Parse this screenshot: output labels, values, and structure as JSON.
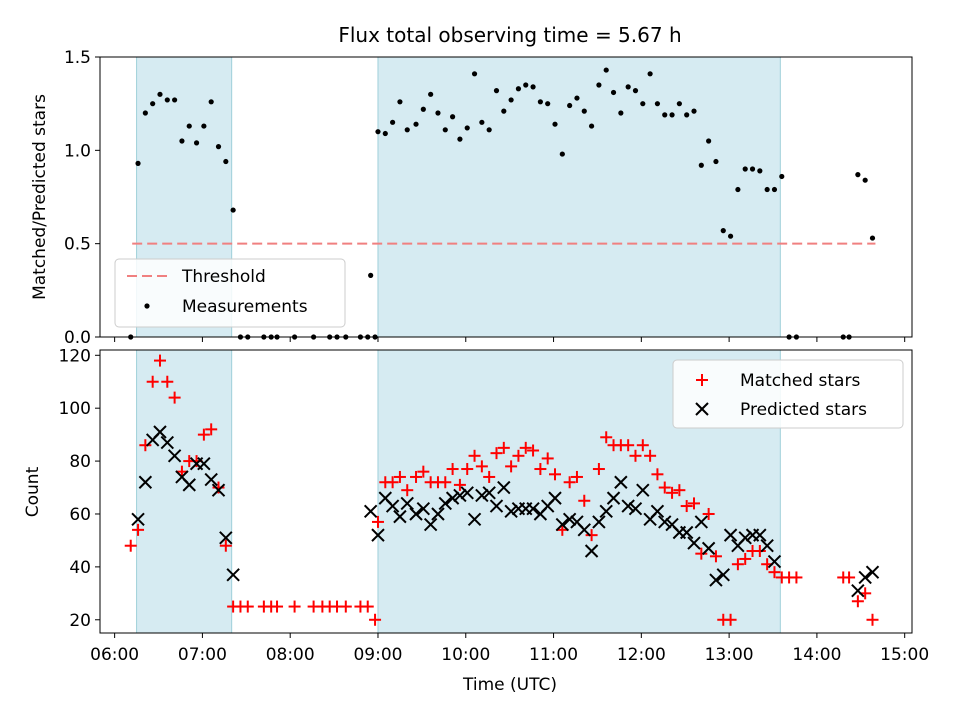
{
  "chart_data": [
    {
      "type": "scatter",
      "title": "Flux total observing time = 5.67 h",
      "ylabel": "Matched/Predicted stars",
      "xlabel": "",
      "xlim": [
        "05:50",
        "15:05"
      ],
      "ylim": [
        0,
        1.5
      ],
      "y_ticks": [
        "0.0",
        "0.5",
        "1.0",
        "1.5"
      ],
      "grid": false,
      "legend_position": "lower-left",
      "observing_intervals": [
        [
          "06:15",
          "07:20"
        ],
        [
          "09:00",
          "13:35"
        ]
      ],
      "threshold": {
        "name": "Threshold",
        "value": 0.5,
        "x_range": [
          "06:12",
          "14:40"
        ],
        "color": "#f08080",
        "style": "dashed"
      },
      "series": [
        {
          "name": "Measurements",
          "marker": "dot",
          "color": "#000000",
          "points": [
            [
              "06:11",
              0.0
            ],
            [
              "06:16",
              0.93
            ],
            [
              "06:21",
              1.2
            ],
            [
              "06:26",
              1.25
            ],
            [
              "06:31",
              1.3
            ],
            [
              "06:36",
              1.27
            ],
            [
              "06:41",
              1.27
            ],
            [
              "06:46",
              1.05
            ],
            [
              "06:51",
              1.13
            ],
            [
              "06:56",
              1.04
            ],
            [
              "07:01",
              1.13
            ],
            [
              "07:06",
              1.26
            ],
            [
              "07:11",
              1.02
            ],
            [
              "07:16",
              0.94
            ],
            [
              "07:21",
              0.68
            ],
            [
              "07:26",
              0.0
            ],
            [
              "07:31",
              0.0
            ],
            [
              "07:42",
              0.0
            ],
            [
              "07:47",
              0.0
            ],
            [
              "07:51",
              0.0
            ],
            [
              "08:03",
              0.0
            ],
            [
              "08:16",
              0.0
            ],
            [
              "08:27",
              0.0
            ],
            [
              "08:32",
              0.0
            ],
            [
              "08:38",
              0.0
            ],
            [
              "08:48",
              0.0
            ],
            [
              "08:53",
              0.0
            ],
            [
              "08:58",
              0.0
            ],
            [
              "08:55",
              0.33
            ],
            [
              "09:00",
              1.1
            ],
            [
              "09:05",
              1.09
            ],
            [
              "09:10",
              1.15
            ],
            [
              "09:15",
              1.26
            ],
            [
              "09:20",
              1.11
            ],
            [
              "09:26",
              1.14
            ],
            [
              "09:31",
              1.22
            ],
            [
              "09:36",
              1.3
            ],
            [
              "09:41",
              1.2
            ],
            [
              "09:46",
              1.11
            ],
            [
              "09:51",
              1.18
            ],
            [
              "09:56",
              1.06
            ],
            [
              "10:01",
              1.12
            ],
            [
              "10:06",
              1.41
            ],
            [
              "10:11",
              1.15
            ],
            [
              "10:16",
              1.11
            ],
            [
              "10:21",
              1.32
            ],
            [
              "10:26",
              1.21
            ],
            [
              "10:31",
              1.27
            ],
            [
              "10:36",
              1.33
            ],
            [
              "10:41",
              1.35
            ],
            [
              "10:46",
              1.34
            ],
            [
              "10:51",
              1.26
            ],
            [
              "10:56",
              1.25
            ],
            [
              "11:01",
              1.14
            ],
            [
              "11:06",
              0.98
            ],
            [
              "11:11",
              1.24
            ],
            [
              "11:16",
              1.28
            ],
            [
              "11:21",
              1.21
            ],
            [
              "11:26",
              1.13
            ],
            [
              "11:31",
              1.35
            ],
            [
              "11:36",
              1.43
            ],
            [
              "11:41",
              1.31
            ],
            [
              "11:46",
              1.2
            ],
            [
              "11:51",
              1.34
            ],
            [
              "11:56",
              1.32
            ],
            [
              "12:01",
              1.25
            ],
            [
              "12:06",
              1.41
            ],
            [
              "12:11",
              1.25
            ],
            [
              "12:16",
              1.19
            ],
            [
              "12:21",
              1.19
            ],
            [
              "12:26",
              1.25
            ],
            [
              "12:31",
              1.19
            ],
            [
              "12:36",
              1.21
            ],
            [
              "12:41",
              0.92
            ],
            [
              "12:46",
              1.05
            ],
            [
              "12:51",
              0.94
            ],
            [
              "12:56",
              0.57
            ],
            [
              "13:01",
              0.54
            ],
            [
              "13:06",
              0.79
            ],
            [
              "13:11",
              0.9
            ],
            [
              "13:16",
              0.9
            ],
            [
              "13:21",
              0.89
            ],
            [
              "13:26",
              0.79
            ],
            [
              "13:31",
              0.79
            ],
            [
              "13:36",
              0.86
            ],
            [
              "13:41",
              0.0
            ],
            [
              "13:46",
              0.0
            ],
            [
              "14:18",
              0.0
            ],
            [
              "14:22",
              0.0
            ],
            [
              "14:28",
              0.87
            ],
            [
              "14:33",
              0.84
            ],
            [
              "14:38",
              0.53
            ]
          ]
        }
      ]
    },
    {
      "type": "scatter",
      "title": "",
      "xlabel": "Time (UTC)",
      "ylabel": "Count",
      "xlim": [
        "05:50",
        "15:05"
      ],
      "ylim": [
        15,
        122
      ],
      "x_ticks": [
        "06:00",
        "07:00",
        "08:00",
        "09:00",
        "10:00",
        "11:00",
        "12:00",
        "13:00",
        "14:00",
        "15:00"
      ],
      "y_ticks": [
        "20",
        "40",
        "60",
        "80",
        "100",
        "120"
      ],
      "grid": false,
      "legend_position": "upper-right",
      "observing_intervals": [
        [
          "06:15",
          "07:20"
        ],
        [
          "09:00",
          "13:35"
        ]
      ],
      "series": [
        {
          "name": "Matched stars",
          "marker": "plus",
          "color": "#ff0000",
          "points": [
            [
              "06:11",
              48
            ],
            [
              "06:16",
              54
            ],
            [
              "06:21",
              86
            ],
            [
              "06:26",
              110
            ],
            [
              "06:31",
              118
            ],
            [
              "06:36",
              110
            ],
            [
              "06:41",
              104
            ],
            [
              "06:46",
              76
            ],
            [
              "06:51",
              80
            ],
            [
              "06:56",
              80
            ],
            [
              "07:01",
              90
            ],
            [
              "07:06",
              92
            ],
            [
              "07:11",
              70
            ],
            [
              "07:16",
              48
            ],
            [
              "07:21",
              25
            ],
            [
              "07:26",
              25
            ],
            [
              "07:31",
              25
            ],
            [
              "07:42",
              25
            ],
            [
              "07:47",
              25
            ],
            [
              "07:51",
              25
            ],
            [
              "08:03",
              25
            ],
            [
              "08:16",
              25
            ],
            [
              "08:22",
              25
            ],
            [
              "08:27",
              25
            ],
            [
              "08:32",
              25
            ],
            [
              "08:38",
              25
            ],
            [
              "08:48",
              25
            ],
            [
              "08:53",
              25
            ],
            [
              "08:58",
              20
            ],
            [
              "09:00",
              57
            ],
            [
              "09:05",
              72
            ],
            [
              "09:10",
              72
            ],
            [
              "09:15",
              74
            ],
            [
              "09:20",
              69
            ],
            [
              "09:26",
              74
            ],
            [
              "09:31",
              76
            ],
            [
              "09:36",
              72
            ],
            [
              "09:41",
              72
            ],
            [
              "09:46",
              72
            ],
            [
              "09:51",
              77
            ],
            [
              "09:56",
              71
            ],
            [
              "10:01",
              77
            ],
            [
              "10:06",
              82
            ],
            [
              "10:11",
              78
            ],
            [
              "10:16",
              74
            ],
            [
              "10:21",
              83
            ],
            [
              "10:26",
              85
            ],
            [
              "10:31",
              78
            ],
            [
              "10:36",
              82
            ],
            [
              "10:41",
              85
            ],
            [
              "10:46",
              84
            ],
            [
              "10:51",
              77
            ],
            [
              "10:56",
              81
            ],
            [
              "11:01",
              75
            ],
            [
              "11:06",
              54
            ],
            [
              "11:11",
              72
            ],
            [
              "11:16",
              74
            ],
            [
              "11:21",
              65
            ],
            [
              "11:26",
              52
            ],
            [
              "11:31",
              77
            ],
            [
              "11:36",
              89
            ],
            [
              "11:41",
              86
            ],
            [
              "11:46",
              86
            ],
            [
              "11:51",
              86
            ],
            [
              "11:56",
              82
            ],
            [
              "12:01",
              86
            ],
            [
              "12:06",
              82
            ],
            [
              "12:11",
              75
            ],
            [
              "12:16",
              70
            ],
            [
              "12:21",
              68
            ],
            [
              "12:26",
              69
            ],
            [
              "12:31",
              63
            ],
            [
              "12:36",
              64
            ],
            [
              "12:41",
              45
            ],
            [
              "12:46",
              60
            ],
            [
              "12:51",
              44
            ],
            [
              "12:56",
              20
            ],
            [
              "13:01",
              20
            ],
            [
              "13:06",
              41
            ],
            [
              "13:11",
              43
            ],
            [
              "13:16",
              46
            ],
            [
              "13:21",
              46
            ],
            [
              "13:26",
              41
            ],
            [
              "13:31",
              38
            ],
            [
              "13:36",
              36
            ],
            [
              "13:41",
              36
            ],
            [
              "13:46",
              36
            ],
            [
              "14:18",
              36
            ],
            [
              "14:22",
              36
            ],
            [
              "14:28",
              27
            ],
            [
              "14:33",
              30
            ],
            [
              "14:38",
              20
            ]
          ]
        },
        {
          "name": "Predicted stars",
          "marker": "x",
          "color": "#000000",
          "points": [
            [
              "06:16",
              58
            ],
            [
              "06:21",
              72
            ],
            [
              "06:26",
              88
            ],
            [
              "06:31",
              91
            ],
            [
              "06:36",
              87
            ],
            [
              "06:41",
              82
            ],
            [
              "06:46",
              74
            ],
            [
              "06:51",
              71
            ],
            [
              "06:56",
              79
            ],
            [
              "07:01",
              79
            ],
            [
              "07:06",
              73
            ],
            [
              "07:11",
              69
            ],
            [
              "07:16",
              51
            ],
            [
              "07:21",
              37
            ],
            [
              "08:55",
              61
            ],
            [
              "09:00",
              52
            ],
            [
              "09:05",
              66
            ],
            [
              "09:10",
              63
            ],
            [
              "09:15",
              59
            ],
            [
              "09:20",
              64
            ],
            [
              "09:26",
              60
            ],
            [
              "09:31",
              62
            ],
            [
              "09:36",
              56
            ],
            [
              "09:41",
              60
            ],
            [
              "09:46",
              64
            ],
            [
              "09:51",
              66
            ],
            [
              "09:56",
              67
            ],
            [
              "10:01",
              68
            ],
            [
              "10:06",
              58
            ],
            [
              "10:11",
              67
            ],
            [
              "10:16",
              68
            ],
            [
              "10:21",
              63
            ],
            [
              "10:26",
              70
            ],
            [
              "10:31",
              61
            ],
            [
              "10:36",
              62
            ],
            [
              "10:41",
              62
            ],
            [
              "10:46",
              62
            ],
            [
              "10:51",
              60
            ],
            [
              "10:56",
              63
            ],
            [
              "11:01",
              66
            ],
            [
              "11:06",
              56
            ],
            [
              "11:11",
              58
            ],
            [
              "11:16",
              57
            ],
            [
              "11:21",
              54
            ],
            [
              "11:26",
              46
            ],
            [
              "11:31",
              57
            ],
            [
              "11:36",
              61
            ],
            [
              "11:41",
              66
            ],
            [
              "11:46",
              72
            ],
            [
              "11:51",
              63
            ],
            [
              "11:56",
              62
            ],
            [
              "12:01",
              69
            ],
            [
              "12:06",
              58
            ],
            [
              "12:11",
              61
            ],
            [
              "12:16",
              57
            ],
            [
              "12:21",
              56
            ],
            [
              "12:26",
              53
            ],
            [
              "12:31",
              53
            ],
            [
              "12:36",
              49
            ],
            [
              "12:41",
              57
            ],
            [
              "12:46",
              47
            ],
            [
              "12:51",
              35
            ],
            [
              "12:56",
              37
            ],
            [
              "13:01",
              52
            ],
            [
              "13:06",
              48
            ],
            [
              "13:11",
              51
            ],
            [
              "13:16",
              52
            ],
            [
              "13:21",
              52
            ],
            [
              "13:26",
              48
            ],
            [
              "13:31",
              42
            ],
            [
              "14:28",
              31
            ],
            [
              "14:33",
              36
            ],
            [
              "14:38",
              38
            ]
          ]
        }
      ]
    }
  ]
}
